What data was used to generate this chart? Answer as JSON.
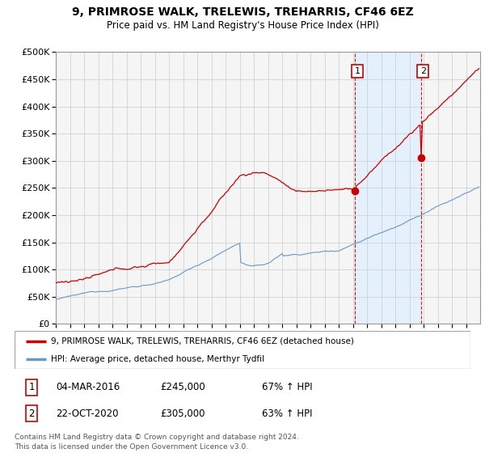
{
  "title": "9, PRIMROSE WALK, TRELEWIS, TREHARRIS, CF46 6EZ",
  "subtitle": "Price paid vs. HM Land Registry's House Price Index (HPI)",
  "house_color": "#cc0000",
  "hpi_color": "#6699cc",
  "shade_color": "#ddeeff",
  "marker1_date_x": 2016.17,
  "marker1_price": 245000,
  "marker2_date_x": 2020.81,
  "marker2_price": 305000,
  "ylim": [
    0,
    500000
  ],
  "yticks": [
    0,
    50000,
    100000,
    150000,
    200000,
    250000,
    300000,
    350000,
    400000,
    450000,
    500000
  ],
  "xlim_start": 1995.0,
  "xlim_end": 2025.0,
  "legend_house": "9, PRIMROSE WALK, TRELEWIS, TREHARRIS, CF46 6EZ (detached house)",
  "legend_hpi": "HPI: Average price, detached house, Merthyr Tydfil",
  "annotation1_label": "1",
  "annotation1_date": "04-MAR-2016",
  "annotation1_price": "£245,000",
  "annotation1_hpi": "67% ↑ HPI",
  "annotation2_label": "2",
  "annotation2_date": "22-OCT-2020",
  "annotation2_price": "£305,000",
  "annotation2_hpi": "63% ↑ HPI",
  "footer": "Contains HM Land Registry data © Crown copyright and database right 2024.\nThis data is licensed under the Open Government Licence v3.0.",
  "background_color": "#f5f5f5",
  "grid_color": "#cccccc"
}
